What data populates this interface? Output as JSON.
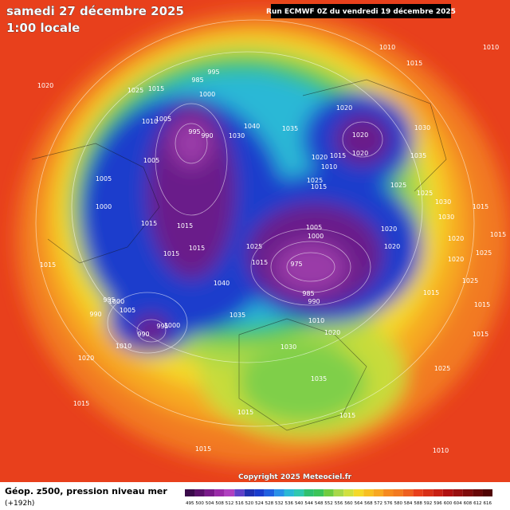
{
  "header": {
    "date": "samedi 27 décembre 2025",
    "time": "1:00 locale",
    "run": "Run ECMWF 0Z du vendredi 19 décembre 2025"
  },
  "footer": {
    "title": "Géop. z500, pression niveau mer",
    "subtitle": "(+192h)",
    "copyright": "Copyright 2025 Meteociel.fr"
  },
  "colorbar": {
    "labels": [
      495,
      500,
      504,
      508,
      512,
      516,
      520,
      524,
      528,
      532,
      536,
      540,
      544,
      548,
      552,
      556,
      560,
      564,
      568,
      572,
      576,
      580,
      584,
      588,
      592,
      596,
      600,
      604,
      608,
      612,
      616
    ]
  },
  "isobar_labels": [
    1010,
    1015,
    1010,
    1020,
    1025,
    1015,
    985,
    995,
    1000,
    1010,
    1005,
    995,
    990,
    1030,
    1040,
    1035,
    1020,
    1020,
    1020,
    1015,
    1020,
    1010,
    1030,
    1035,
    1025,
    1015,
    1005,
    1005,
    1000,
    1015,
    1025,
    1025,
    1030,
    1030,
    1015,
    1015,
    1005,
    1000,
    1020,
    1020,
    1025,
    1015,
    975,
    1020,
    1025,
    1020,
    1025,
    1015,
    1015,
    1015,
    1015,
    1015,
    1015,
    1015,
    1040,
    1035,
    995,
    1000,
    990,
    1005,
    995,
    1000,
    990,
    1010,
    1020,
    1015,
    985,
    990,
    1010,
    1020,
    1030,
    1035,
    1025,
    1015,
    1015,
    1015,
    1010
  ]
}
